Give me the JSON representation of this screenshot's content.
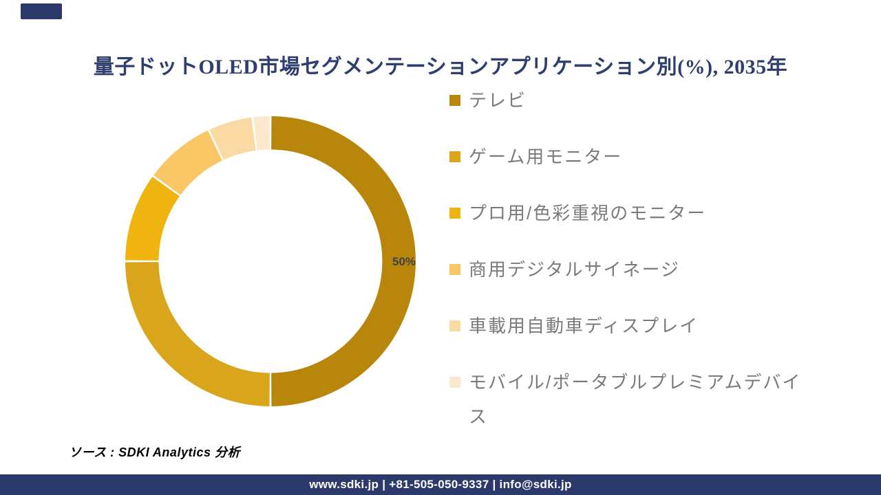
{
  "title": "量子ドットOLED市場セグメンテーションアプリケーション別(%), 2035年",
  "title_color": "#2E3E6F",
  "chart_data": {
    "type": "pie",
    "subtype": "donut",
    "title": "量子ドットOLED市場セグメンテーションアプリケーション別(%), 2035年",
    "categories": [
      "テレビ",
      "ゲーム用モニター",
      "プロ用/色彩重視のモニター",
      "商用デジタルサイネージ",
      "車載用自動車ディスプレイ",
      "モバイル/ポータブルプレミアムデバイス"
    ],
    "values": [
      50,
      25,
      10,
      8,
      5,
      2
    ],
    "unit": "%",
    "colors": [
      "#B8860B",
      "#D9A51B",
      "#F0B411",
      "#F9C765",
      "#FBD9A3",
      "#FCE8CC"
    ],
    "start_angle_deg": 0,
    "clockwise": true,
    "inner_radius_ratio": 0.77,
    "legend_position": "right",
    "data_label": "50%",
    "data_label_slice": "テレビ"
  },
  "legend_text_color": "#7a7a7a",
  "corner_accent_color": "#2B3A6B",
  "source_note": "ソース : SDKI Analytics 分析",
  "footer": {
    "text": "www.sdki.jp | +81-505-050-9337 | info@sdki.jp",
    "bar_color": "#2B3A6B"
  }
}
